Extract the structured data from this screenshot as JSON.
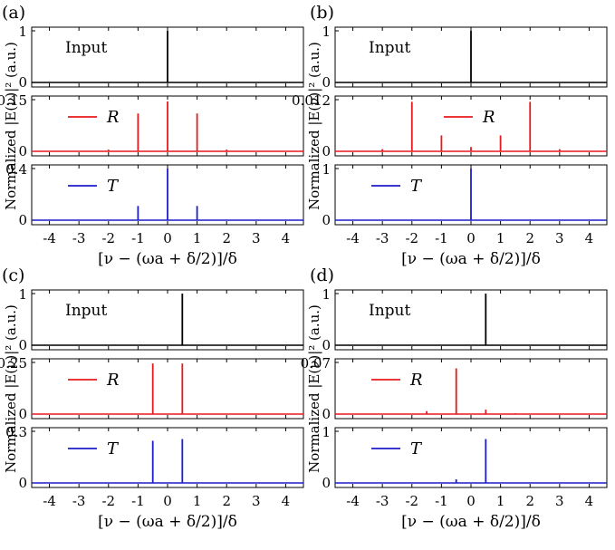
{
  "figure": {
    "ylabel": "Normalized |E(ν)|² (a.u.)",
    "xlabel": "[ν − (ωa + δ/2)]/δ",
    "xlim": [
      -4.6,
      4.6
    ],
    "xticks": [
      -4,
      -3,
      -2,
      -1,
      0,
      1,
      2,
      3,
      4
    ],
    "xtick_labels": [
      "-4",
      "-3",
      "-2",
      "-1",
      "0",
      "1",
      "2",
      "3",
      "4"
    ],
    "colors": {
      "input": "#000000",
      "R": "#e8191c",
      "T": "#1d1dcc"
    }
  },
  "chart_data": [
    {
      "panel_label": "(a)",
      "type": "line",
      "subplots": [
        {
          "legend": "Input",
          "series": "input",
          "yticks": [
            "0",
            "1"
          ],
          "ylim": [
            0,
            1
          ],
          "spikes": [
            {
              "x": 0,
              "y": 1.0
            }
          ]
        },
        {
          "legend": "R",
          "series": "R",
          "yticks": [
            "0",
            "0.15"
          ],
          "ylim": [
            0,
            0.15
          ],
          "spikes": [
            {
              "x": -2,
              "y": 0.005
            },
            {
              "x": -1,
              "y": 0.11
            },
            {
              "x": 0,
              "y": 0.145
            },
            {
              "x": 1,
              "y": 0.11
            },
            {
              "x": 2,
              "y": 0.005
            }
          ]
        },
        {
          "legend": "T",
          "series": "T",
          "yticks": [
            "0",
            "0.4"
          ],
          "ylim": [
            0,
            0.4
          ],
          "spikes": [
            {
              "x": -1,
              "y": 0.11
            },
            {
              "x": 0,
              "y": 0.4
            },
            {
              "x": 1,
              "y": 0.11
            }
          ]
        }
      ]
    },
    {
      "panel_label": "(b)",
      "type": "line",
      "subplots": [
        {
          "legend": "Input",
          "series": "input",
          "yticks": [
            "0",
            "1"
          ],
          "ylim": [
            0,
            1
          ],
          "spikes": [
            {
              "x": 0,
              "y": 1.0
            }
          ]
        },
        {
          "legend": "R",
          "series": "R",
          "yticks": [
            "0",
            "0.012"
          ],
          "ylim": [
            0,
            0.012
          ],
          "spikes": [
            {
              "x": -3,
              "y": 0.0005
            },
            {
              "x": -2,
              "y": 0.0115
            },
            {
              "x": -1,
              "y": 0.0037
            },
            {
              "x": 0,
              "y": 0.001
            },
            {
              "x": 1,
              "y": 0.0037
            },
            {
              "x": 2,
              "y": 0.0115
            },
            {
              "x": 3,
              "y": 0.0005
            }
          ]
        },
        {
          "legend": "T",
          "series": "T",
          "yticks": [
            "0",
            "1"
          ],
          "ylim": [
            0,
            1
          ],
          "spikes": [
            {
              "x": 0,
              "y": 1.0
            }
          ]
        }
      ]
    },
    {
      "panel_label": "(c)",
      "type": "line",
      "subplots": [
        {
          "legend": "Input",
          "series": "input",
          "yticks": [
            "0",
            "1"
          ],
          "ylim": [
            0,
            1
          ],
          "spikes": [
            {
              "x": 0.5,
              "y": 1.0
            }
          ]
        },
        {
          "legend": "R",
          "series": "R",
          "yticks": [
            "0",
            "0.25"
          ],
          "ylim": [
            0,
            0.25
          ],
          "spikes": [
            {
              "x": -0.5,
              "y": 0.245
            },
            {
              "x": 0.5,
              "y": 0.245
            }
          ]
        },
        {
          "legend": "T",
          "series": "T",
          "yticks": [
            "0",
            "0.3"
          ],
          "ylim": [
            0,
            0.3
          ],
          "spikes": [
            {
              "x": -0.5,
              "y": 0.245
            },
            {
              "x": 0.5,
              "y": 0.255
            }
          ]
        }
      ]
    },
    {
      "panel_label": "(d)",
      "type": "line",
      "subplots": [
        {
          "legend": "Input",
          "series": "input",
          "yticks": [
            "0",
            "1"
          ],
          "ylim": [
            0,
            1
          ],
          "spikes": [
            {
              "x": 0.5,
              "y": 1.0
            }
          ]
        },
        {
          "legend": "R",
          "series": "R",
          "yticks": [
            "0",
            "0.07"
          ],
          "ylim": [
            0,
            0.07
          ],
          "spikes": [
            {
              "x": -1.5,
              "y": 0.004
            },
            {
              "x": -0.5,
              "y": 0.062
            },
            {
              "x": 0.5,
              "y": 0.006
            },
            {
              "x": 1.5,
              "y": 0.001
            }
          ]
        },
        {
          "legend": "T",
          "series": "T",
          "yticks": [
            "0",
            "1"
          ],
          "ylim": [
            0,
            1
          ],
          "spikes": [
            {
              "x": -0.5,
              "y": 0.07
            },
            {
              "x": 0.5,
              "y": 0.85
            }
          ]
        }
      ]
    }
  ]
}
